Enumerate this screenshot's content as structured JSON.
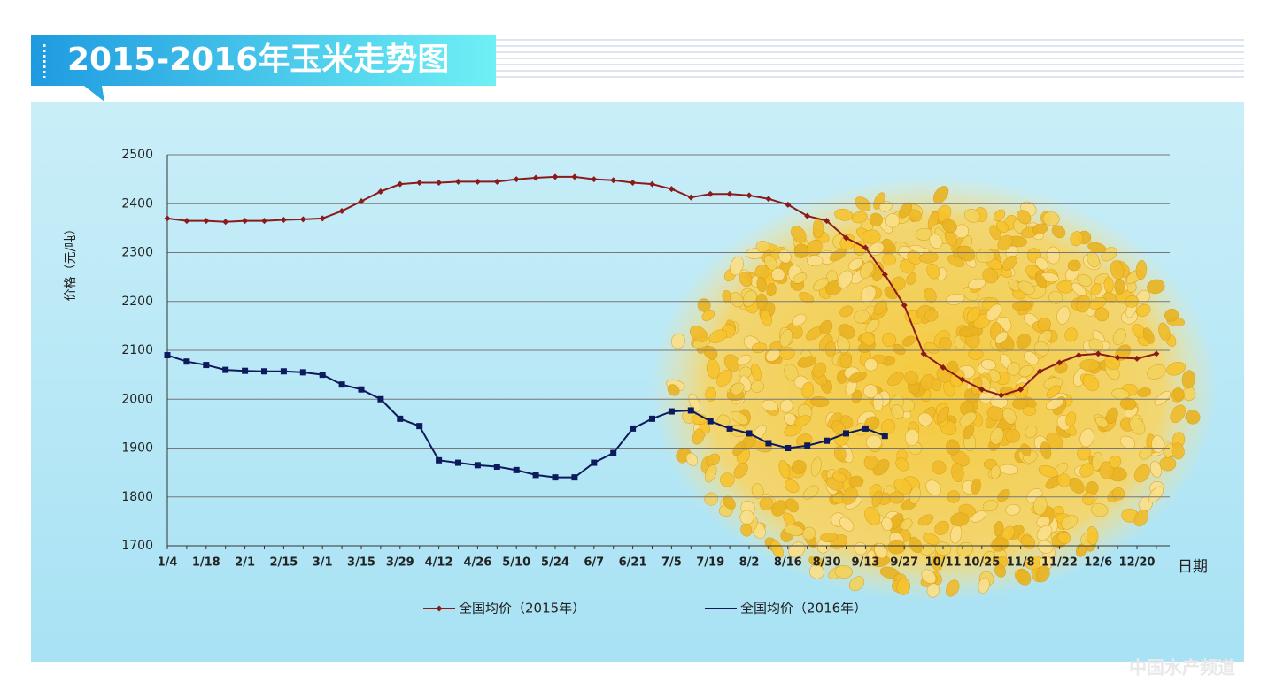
{
  "chart_data": {
    "type": "line",
    "title": "2015-2016年玉米走势图",
    "y_label": "价格（元/吨）",
    "x_label": "日期",
    "watermark": "中国水产频道",
    "categories": [
      "1/4",
      null,
      "1/18",
      null,
      "2/1",
      null,
      "2/15",
      null,
      "3/1",
      null,
      "3/15",
      null,
      "3/29",
      null,
      "4/12",
      null,
      "4/26",
      null,
      "5/10",
      null,
      "5/24",
      null,
      "6/7",
      null,
      "6/21",
      null,
      "7/5",
      null,
      "7/19",
      null,
      "8/2",
      null,
      "8/16",
      null,
      "8/30",
      null,
      "9/13",
      null,
      "9/27",
      null,
      "10/11",
      null,
      "10/25",
      null,
      "11/8",
      null,
      "11/22",
      null,
      "12/6",
      null,
      "12/20",
      null
    ],
    "series": [
      {
        "name": "全国均价（2015年）",
        "color": "#8b1a1a",
        "marker": "diamond",
        "values": [
          2370,
          2365,
          2365,
          2363,
          2365,
          2365,
          2367,
          2368,
          2370,
          2385,
          2405,
          2425,
          2440,
          2443,
          2443,
          2445,
          2445,
          2445,
          2450,
          2453,
          2455,
          2455,
          2450,
          2448,
          2443,
          2440,
          2430,
          2413,
          2420,
          2420,
          2417,
          2410,
          2398,
          2375,
          2365,
          2330,
          2310,
          2255,
          2192,
          2093,
          2065,
          2040,
          2020,
          2008,
          2020,
          2057,
          2075,
          2090,
          2093,
          2085,
          2083,
          2093
        ]
      },
      {
        "name": "全国均价（2016年）",
        "color": "#0d1a5e",
        "marker": "square",
        "values": [
          2090,
          2077,
          2070,
          2060,
          2058,
          2057,
          2057,
          2055,
          2050,
          2030,
          2020,
          2000,
          1960,
          1945,
          1875,
          1870,
          1865,
          1862,
          1855,
          1845,
          1840,
          1840,
          1870,
          1890,
          1940,
          1960,
          1975,
          1977,
          1955,
          1940,
          1930,
          1910,
          1900,
          1905,
          1915,
          1930,
          1940,
          1925,
          null,
          null,
          null,
          null,
          null,
          null,
          null,
          null,
          null,
          null,
          null,
          null,
          null,
          null
        ]
      }
    ],
    "ylim": [
      1700,
      2500
    ],
    "yticks": [
      1700,
      1800,
      1900,
      2000,
      2100,
      2200,
      2300,
      2400,
      2500
    ],
    "grid": true,
    "legend": "bottom"
  }
}
